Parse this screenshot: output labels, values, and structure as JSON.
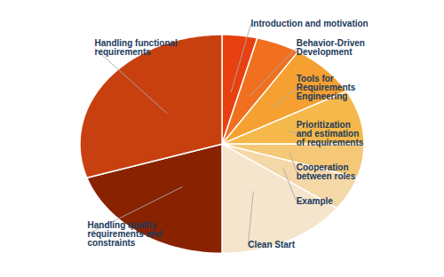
{
  "chart_data": {
    "type": "pie",
    "categories": [
      "Introduction and motivation",
      "Behavior-Driven\nDevelopment",
      "Tools for\nRequirements\nEngineering",
      "Prioritization\nand estimation\nof requirements",
      "Cooperation\nbetween roles",
      "Example",
      "Clean Start",
      "Handling quality\nrequirements and\nconstraints",
      "Handling functional\nrequirements"
    ],
    "values": [
      4,
      5,
      8,
      8,
      5,
      5,
      15,
      20,
      30
    ],
    "colors": [
      "#E84010",
      "#F07020",
      "#F5A030",
      "#F5B84A",
      "#F5C878",
      "#F5D8A8",
      "#F5E5CC",
      "#882200",
      "#C84010"
    ]
  }
}
